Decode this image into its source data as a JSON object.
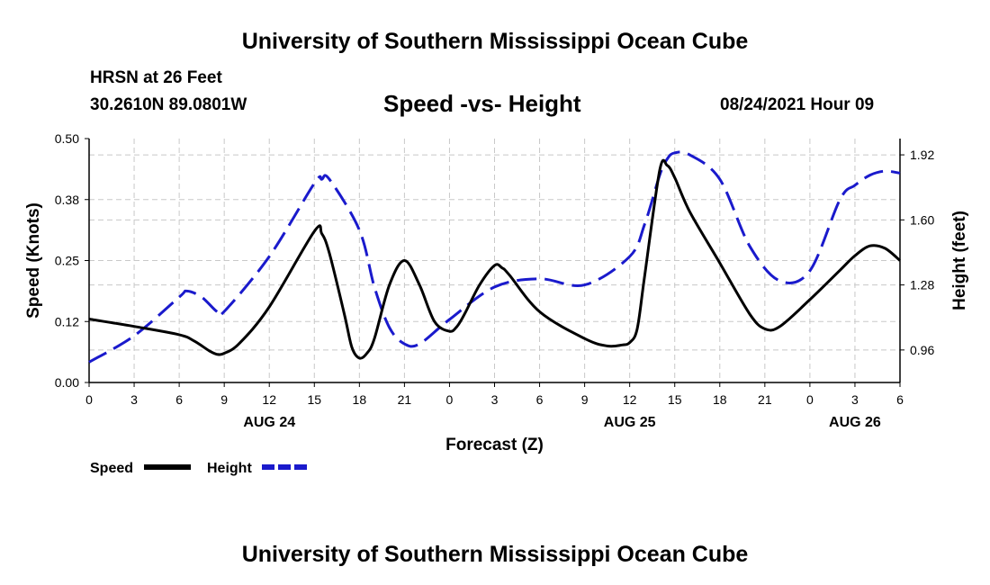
{
  "header": {
    "title": "University of Southern Mississippi Ocean Cube",
    "station": "HRSN at 26 Feet",
    "coords": "30.2610N  89.0801W",
    "chart_title": "Speed -vs- Height",
    "timestamp": "08/24/2021 Hour 09"
  },
  "footer": {
    "title": "University of Southern Mississippi Ocean Cube"
  },
  "colors": {
    "speed": "#000000",
    "height": "#1a1acc",
    "grid": "#c8c8c8"
  },
  "chart_data": {
    "type": "line",
    "title": "Speed -vs- Height",
    "xlabel": "Forecast (Z)",
    "ylabel": "Speed (Knots)",
    "y2label": "Height (feet)",
    "xlim": [
      0,
      54
    ],
    "ylim": [
      0,
      0.5
    ],
    "y2lim": [
      0.8,
      2.0
    ],
    "x_tick_values": [
      0,
      3,
      6,
      9,
      12,
      15,
      18,
      21,
      24,
      27,
      30,
      33,
      36,
      39,
      42,
      45,
      48,
      51,
      54
    ],
    "x_tick_labels": [
      "0",
      "3",
      "6",
      "9",
      "12",
      "15",
      "18",
      "21",
      "0",
      "3",
      "6",
      "9",
      "12",
      "15",
      "18",
      "21",
      "0",
      "3",
      "6"
    ],
    "date_labels": [
      {
        "x": 12,
        "label": "AUG 24"
      },
      {
        "x": 36,
        "label": "AUG 25"
      },
      {
        "x": 51,
        "label": "AUG 26"
      }
    ],
    "y_ticks": [
      0.0,
      0.125,
      0.25,
      0.375,
      0.5
    ],
    "y_tick_labels": [
      "0.00",
      "0.12",
      "0.25",
      "0.38",
      "0.50"
    ],
    "y2_ticks": [
      0.96,
      1.28,
      1.6,
      1.92
    ],
    "y2_tick_labels": [
      "0.96",
      "1.28",
      "1.60",
      "1.92"
    ],
    "grid": true,
    "legend": {
      "position": "bottom-left",
      "speed_label": "Speed",
      "height_label": "Height"
    },
    "series": [
      {
        "name": "Speed",
        "axis": "left",
        "style": "solid",
        "x": [
          0,
          3,
          6,
          7,
          8,
          8.5,
          9,
          10,
          12,
          15,
          15.5,
          16,
          17,
          17.5,
          18,
          18.5,
          19,
          20,
          21,
          22,
          23,
          24,
          24.5,
          25,
          26,
          27,
          27.5,
          28,
          30,
          33,
          34.5,
          35.5,
          36,
          36.5,
          37,
          38,
          38.5,
          39,
          40,
          42,
          44,
          45,
          46,
          48,
          50,
          51,
          52,
          53,
          54
        ],
        "y": [
          0.13,
          0.115,
          0.098,
          0.085,
          0.065,
          0.058,
          0.06,
          0.08,
          0.155,
          0.31,
          0.305,
          0.265,
          0.14,
          0.072,
          0.05,
          0.06,
          0.09,
          0.2,
          0.25,
          0.2,
          0.125,
          0.105,
          0.115,
          0.14,
          0.2,
          0.24,
          0.235,
          0.22,
          0.145,
          0.09,
          0.075,
          0.077,
          0.082,
          0.11,
          0.22,
          0.435,
          0.445,
          0.42,
          0.35,
          0.245,
          0.14,
          0.11,
          0.115,
          0.17,
          0.23,
          0.26,
          0.28,
          0.275,
          0.25
        ]
      },
      {
        "name": "Height",
        "axis": "right",
        "style": "dashed",
        "x": [
          0,
          3,
          6,
          6.5,
          7.5,
          8.5,
          9,
          12,
          15,
          15.5,
          16,
          18,
          19,
          20,
          21,
          22,
          24,
          27,
          30,
          33,
          36,
          37,
          38,
          38.5,
          39,
          40,
          42,
          44,
          46,
          48,
          50,
          51,
          52,
          53,
          54
        ],
        "y": [
          0.9,
          1.03,
          1.22,
          1.25,
          1.22,
          1.15,
          1.15,
          1.42,
          1.78,
          1.8,
          1.8,
          1.55,
          1.27,
          1.07,
          0.99,
          0.99,
          1.11,
          1.27,
          1.31,
          1.28,
          1.42,
          1.58,
          1.82,
          1.9,
          1.93,
          1.92,
          1.8,
          1.47,
          1.3,
          1.35,
          1.7,
          1.77,
          1.82,
          1.84,
          1.83
        ]
      }
    ]
  }
}
